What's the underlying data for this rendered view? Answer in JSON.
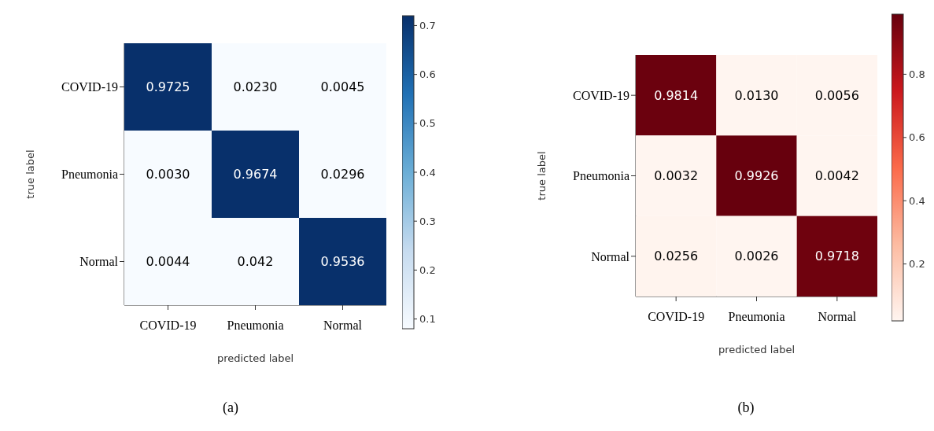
{
  "chart_data": [
    {
      "type": "heatmap",
      "xlabel": "predicted label",
      "ylabel": "true label",
      "categories": [
        "COVID-19",
        "Pneumonia",
        "Normal"
      ],
      "y_categories": [
        "COVID-19",
        "Pneumonia",
        "Normal"
      ],
      "cells": [
        [
          0.9725,
          0.023,
          0.0045
        ],
        [
          0.003,
          0.9674,
          0.0296
        ],
        [
          0.0044,
          0.042,
          0.9536
        ]
      ],
      "cell_labels": [
        [
          "0.9725",
          "0.0230",
          "0.0045"
        ],
        [
          "0.0030",
          "0.9674",
          "0.0296"
        ],
        [
          "0.0044",
          "0.042",
          "0.9536"
        ]
      ],
      "clim": [
        0.08,
        0.72
      ],
      "cticks": [
        0.1,
        0.2,
        0.3,
        0.4,
        0.5,
        0.6,
        0.7
      ],
      "colors": [
        "#f7fbff",
        "#c6dbef",
        "#6baed6",
        "#2171b5",
        "#08306b"
      ],
      "annotations": [
        "(a)"
      ]
    },
    {
      "type": "heatmap",
      "xlabel": "predicted label",
      "ylabel": "true label",
      "categories": [
        "COVID-19",
        "Pneumonia",
        "Normal"
      ],
      "y_categories": [
        "COVID-19",
        "Pneumonia",
        "Normal"
      ],
      "cells": [
        [
          0.9814,
          0.013,
          0.0056
        ],
        [
          0.0032,
          0.9926,
          0.0042
        ],
        [
          0.0256,
          0.0026,
          0.9718
        ]
      ],
      "cell_labels": [
        [
          "0.9814",
          "0.0130",
          "0.0056"
        ],
        [
          "0.0032",
          "0.9926",
          "0.0042"
        ],
        [
          "0.0256",
          "0.0026",
          "0.9718"
        ]
      ],
      "clim": [
        0.02,
        0.99
      ],
      "cticks": [
        0.2,
        0.4,
        0.6,
        0.8
      ],
      "colors": [
        "#fff5f0",
        "#fcbba1",
        "#fb6a4a",
        "#cb181d",
        "#67000d"
      ],
      "annotations": [
        "(b)"
      ]
    }
  ]
}
